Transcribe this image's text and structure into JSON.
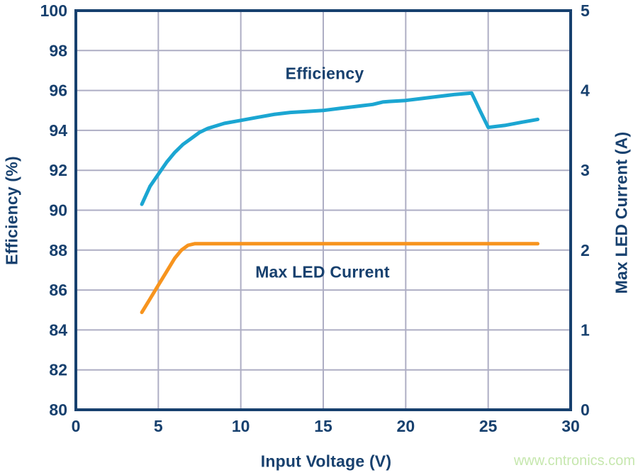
{
  "watermark": {
    "text": "www.cntronics.com",
    "color": "#c6e7ae"
  },
  "colors": {
    "navy": "#17406e",
    "grid": "#aeaec4",
    "efficiency_line": "#1ba6d2",
    "current_line": "#f7941e",
    "background": "#ffffff"
  },
  "chart_data": {
    "type": "line",
    "title": "",
    "xlabel": "Input Voltage (V)",
    "ylabel_left": "Efficiency (%)",
    "ylabel_right": "Max LED Current (A)",
    "xlim": [
      0,
      30
    ],
    "xticks": [
      0,
      5,
      10,
      15,
      20,
      25,
      30
    ],
    "ylim_left": [
      80,
      100
    ],
    "yticks_left": [
      80,
      82,
      84,
      86,
      88,
      90,
      92,
      94,
      96,
      98,
      100
    ],
    "ylim_right": [
      0,
      5
    ],
    "yticks_right": [
      0,
      1,
      2,
      3,
      4,
      5
    ],
    "grid": true,
    "legend_position": "inline-labels",
    "series": [
      {
        "name": "Efficiency",
        "label": "Efficiency",
        "axis": "left",
        "color": "#1ba6d2",
        "x": [
          4,
          4.5,
          5,
          5.5,
          6,
          6.5,
          7,
          7.5,
          8,
          9,
          10,
          11,
          12,
          13,
          14,
          15,
          16,
          17,
          18,
          18.6,
          19,
          20,
          21,
          22,
          23,
          24,
          24.5,
          25,
          26,
          27,
          28
        ],
        "y": [
          90.3,
          91.2,
          91.8,
          92.4,
          92.9,
          93.3,
          93.6,
          93.9,
          94.1,
          94.35,
          94.5,
          94.65,
          94.8,
          94.9,
          94.95,
          95.0,
          95.1,
          95.2,
          95.3,
          95.42,
          95.45,
          95.5,
          95.6,
          95.7,
          95.8,
          95.87,
          95.0,
          94.15,
          94.25,
          94.4,
          94.55
        ]
      },
      {
        "name": "Max LED Current",
        "label": "Max LED Current",
        "axis": "right",
        "color": "#f7941e",
        "x": [
          4,
          4.5,
          5,
          5.5,
          6,
          6.4,
          6.8,
          7.2,
          8,
          10,
          14,
          18,
          22,
          26,
          28
        ],
        "y": [
          1.22,
          1.39,
          1.56,
          1.73,
          1.9,
          2.0,
          2.06,
          2.08,
          2.08,
          2.08,
          2.08,
          2.08,
          2.08,
          2.08,
          2.08
        ]
      }
    ]
  }
}
